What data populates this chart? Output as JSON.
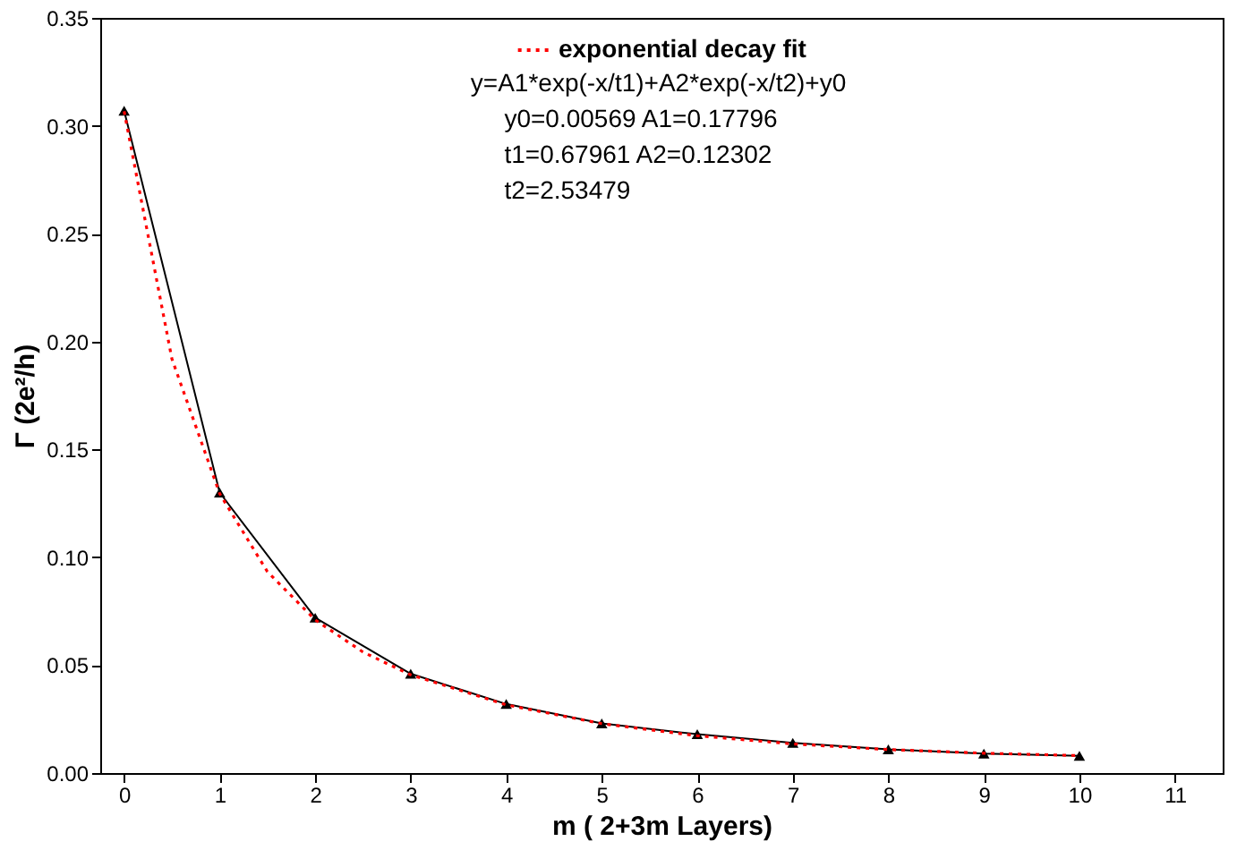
{
  "chart_data": {
    "type": "line",
    "xlabel": "m ( 2+3m Layers)",
    "ylabel": "Γ (2e²/h)",
    "xlim": [
      -0.25,
      11.5
    ],
    "xticks": [
      0,
      1,
      2,
      3,
      4,
      5,
      6,
      7,
      8,
      9,
      10,
      11
    ],
    "ylim": [
      0,
      0.35
    ],
    "yticks": [
      {
        "value": 0,
        "label": "0.00"
      },
      {
        "value": 0.05,
        "label": "0.05"
      },
      {
        "value": 0.1,
        "label": "0.10"
      },
      {
        "value": 0.15,
        "label": "0.15"
      },
      {
        "value": 0.2,
        "label": "0.20"
      },
      {
        "value": 0.25,
        "label": "0.25"
      },
      {
        "value": 0.3,
        "label": "0.30"
      },
      {
        "value": 0.35,
        "label": "0.35"
      }
    ],
    "x": [
      0,
      1,
      2,
      3,
      4,
      5,
      6,
      7,
      8,
      9,
      10
    ],
    "series": [
      {
        "color": "#000000",
        "marker": "triangle",
        "line_style": "solid",
        "values": [
          0.307,
          0.13,
          0.072,
          0.046,
          0.032,
          0.023,
          0.018,
          0.014,
          0.011,
          0.009,
          0.008
        ]
      },
      {
        "name": "exponential decay fit",
        "color": "#ff0000",
        "marker": "none",
        "line_style": "dotted",
        "x": [
          0,
          0.5,
          1,
          1.5,
          2,
          2.5,
          3,
          4,
          5,
          6,
          7,
          8,
          9,
          10
        ],
        "values": [
          0.3067,
          0.192,
          0.1295,
          0.0933,
          0.071,
          0.0561,
          0.0455,
          0.0316,
          0.0229,
          0.0173,
          0.0135,
          0.0109,
          0.0092,
          0.0081
        ]
      }
    ],
    "legend": "top right",
    "grid": false,
    "annotations": [
      "y=A1*exp(-x/t1)+A2*exp(-x/t2)+y0",
      "y0=0.00569    A1=0.17796",
      "t1=0.67961     A2=0.12302",
      "t2=2.53479"
    ]
  }
}
